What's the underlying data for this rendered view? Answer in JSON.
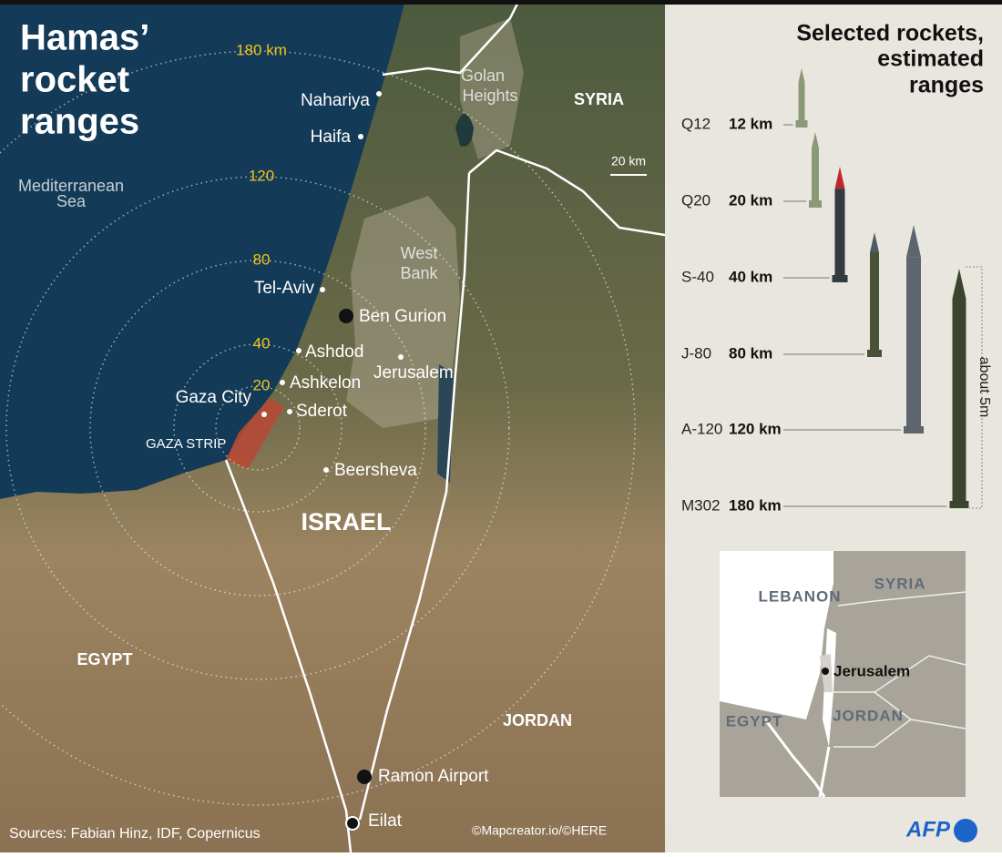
{
  "title_lines": [
    "Hamas’",
    "rocket",
    "ranges"
  ],
  "range_rings": [
    {
      "value": 180,
      "label": "180 km"
    },
    120,
    80,
    40,
    20
  ],
  "sea": [
    "Mediterranean",
    "Sea"
  ],
  "golan": [
    "Golan",
    "Heights"
  ],
  "west_bank": [
    "West",
    "Bank"
  ],
  "countries": {
    "syria": "SYRIA",
    "israel": "ISRAEL",
    "egypt": "EGYPT",
    "jordan": "JORDAN",
    "gaza_strip": "GAZA STRIP"
  },
  "cities": {
    "nahariya": "Nahariya",
    "haifa": "Haifa",
    "tel_aviv": "Tel-Aviv",
    "ben_gurion": "Ben Gurion",
    "ashdod": "Ashdod",
    "ashkelon": "Ashkelon",
    "jerusalem": "Jerusalem",
    "gaza_city": "Gaza City",
    "sderot": "Sderot",
    "beersheva": "Beersheva",
    "ramon": "Ramon Airport",
    "eilat": "Eilat"
  },
  "scale": "20 km",
  "rockets_title": [
    "Selected rockets,",
    "estimated",
    "ranges"
  ],
  "rockets": [
    {
      "name": "Q12",
      "range": "12 km"
    },
    {
      "name": "Q20",
      "range": "20 km"
    },
    {
      "name": "S-40",
      "range": "40 km"
    },
    {
      "name": "J-80",
      "range": "80 km"
    },
    {
      "name": "A-120",
      "range": "120 km"
    },
    {
      "name": "M302",
      "range": "180 km"
    }
  ],
  "size_note": "about 5m",
  "inset": {
    "lebanon": "LEBANON",
    "syria": "SYRIA",
    "jerusalem": "Jerusalem",
    "egypt": "EGYPT",
    "jordan": "JORDAN"
  },
  "footer": {
    "sources": "Sources: Fabian Hinz, IDF, Copernicus",
    "credit": "©Mapcreator.io/©HERE",
    "logo": "AFP"
  }
}
